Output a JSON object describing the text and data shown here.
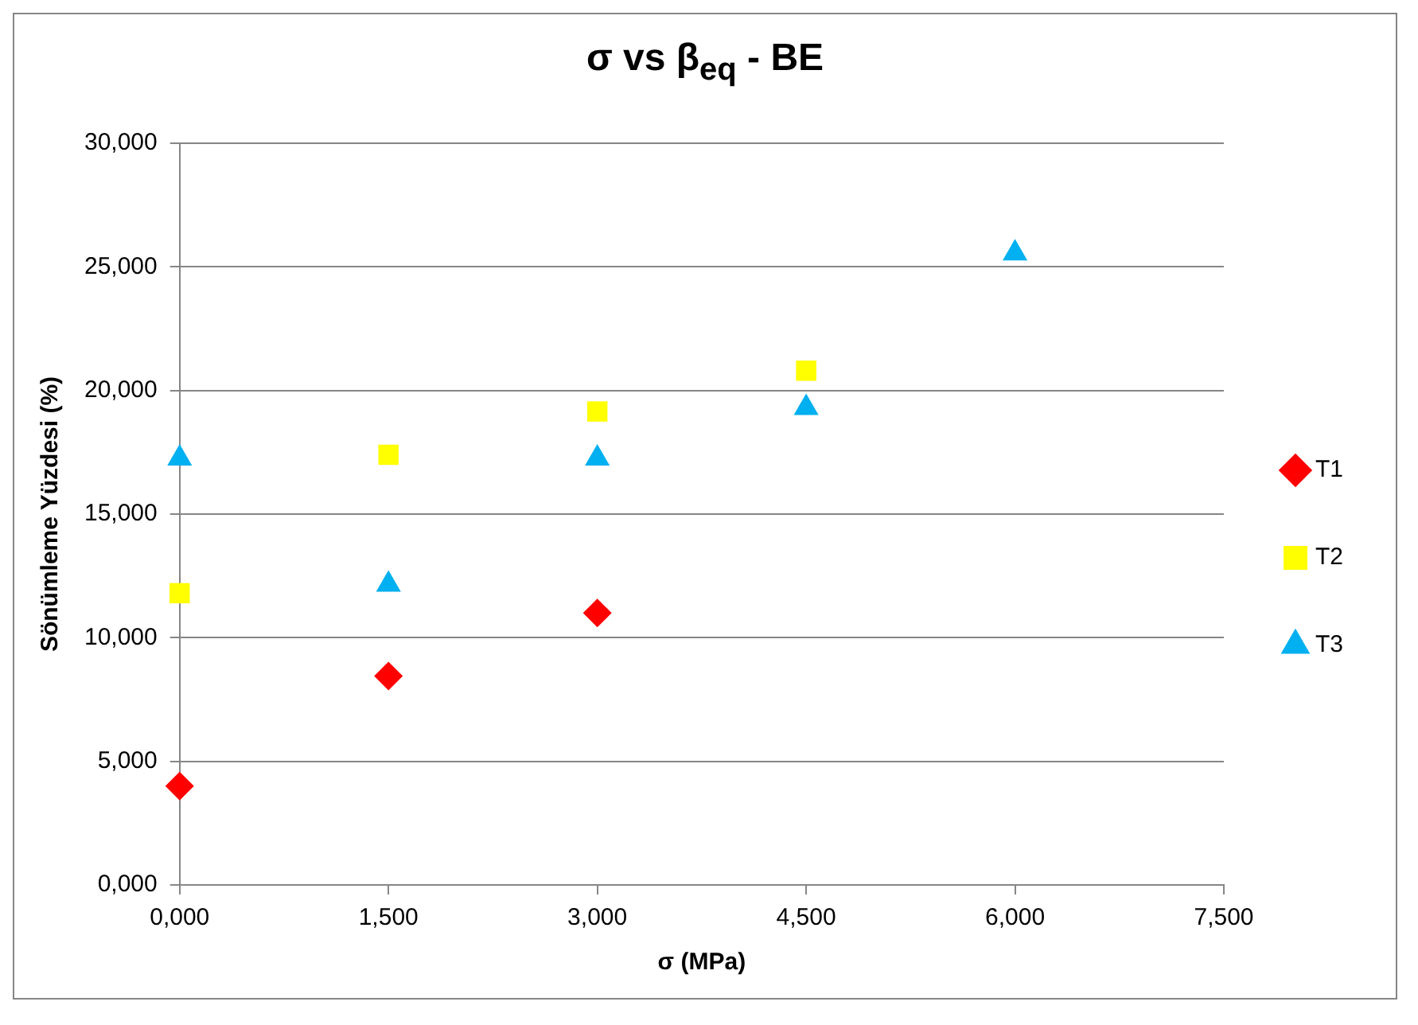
{
  "chart_data": {
    "type": "scatter",
    "title": "σ vs β$_{eq}$ - BE",
    "xlabel": "σ (MPa)",
    "ylabel": "Sönümleme Yüzdesi (%)",
    "xlim": [
      0,
      7.5
    ],
    "xticks": [
      {
        "value": 0,
        "label": "0,000"
      },
      {
        "value": 1.5,
        "label": "1,500"
      },
      {
        "value": 3,
        "label": "3,000"
      },
      {
        "value": 4.5,
        "label": "4,500"
      },
      {
        "value": 6,
        "label": "6,000"
      },
      {
        "value": 7.5,
        "label": "7,500"
      }
    ],
    "ylim": [
      0,
      30
    ],
    "yticks": [
      {
        "value": 0,
        "label": "0,000"
      },
      {
        "value": 5,
        "label": "5,000"
      },
      {
        "value": 10,
        "label": "10,000"
      },
      {
        "value": 15,
        "label": "15,000"
      },
      {
        "value": 20,
        "label": "20,000"
      },
      {
        "value": 25,
        "label": "25,000"
      },
      {
        "value": 30,
        "label": "30,000"
      }
    ],
    "grid": "y",
    "legend": "right",
    "series": [
      {
        "name": "T1",
        "color": "#ff0000",
        "marker": "diamond",
        "x": [
          0,
          1.5,
          3
        ],
        "values": [
          4.0,
          8.45,
          11.0
        ]
      },
      {
        "name": "T2",
        "color": "#ffff00",
        "marker": "square",
        "x": [
          0,
          1.5,
          3,
          4.5
        ],
        "values": [
          11.8,
          17.4,
          19.15,
          20.8
        ]
      },
      {
        "name": "T3",
        "color": "#00b0f0",
        "marker": "triangle",
        "x": [
          0,
          1.5,
          3,
          4.5,
          6
        ],
        "values": [
          17.25,
          12.15,
          17.25,
          19.3,
          25.55
        ]
      }
    ]
  }
}
